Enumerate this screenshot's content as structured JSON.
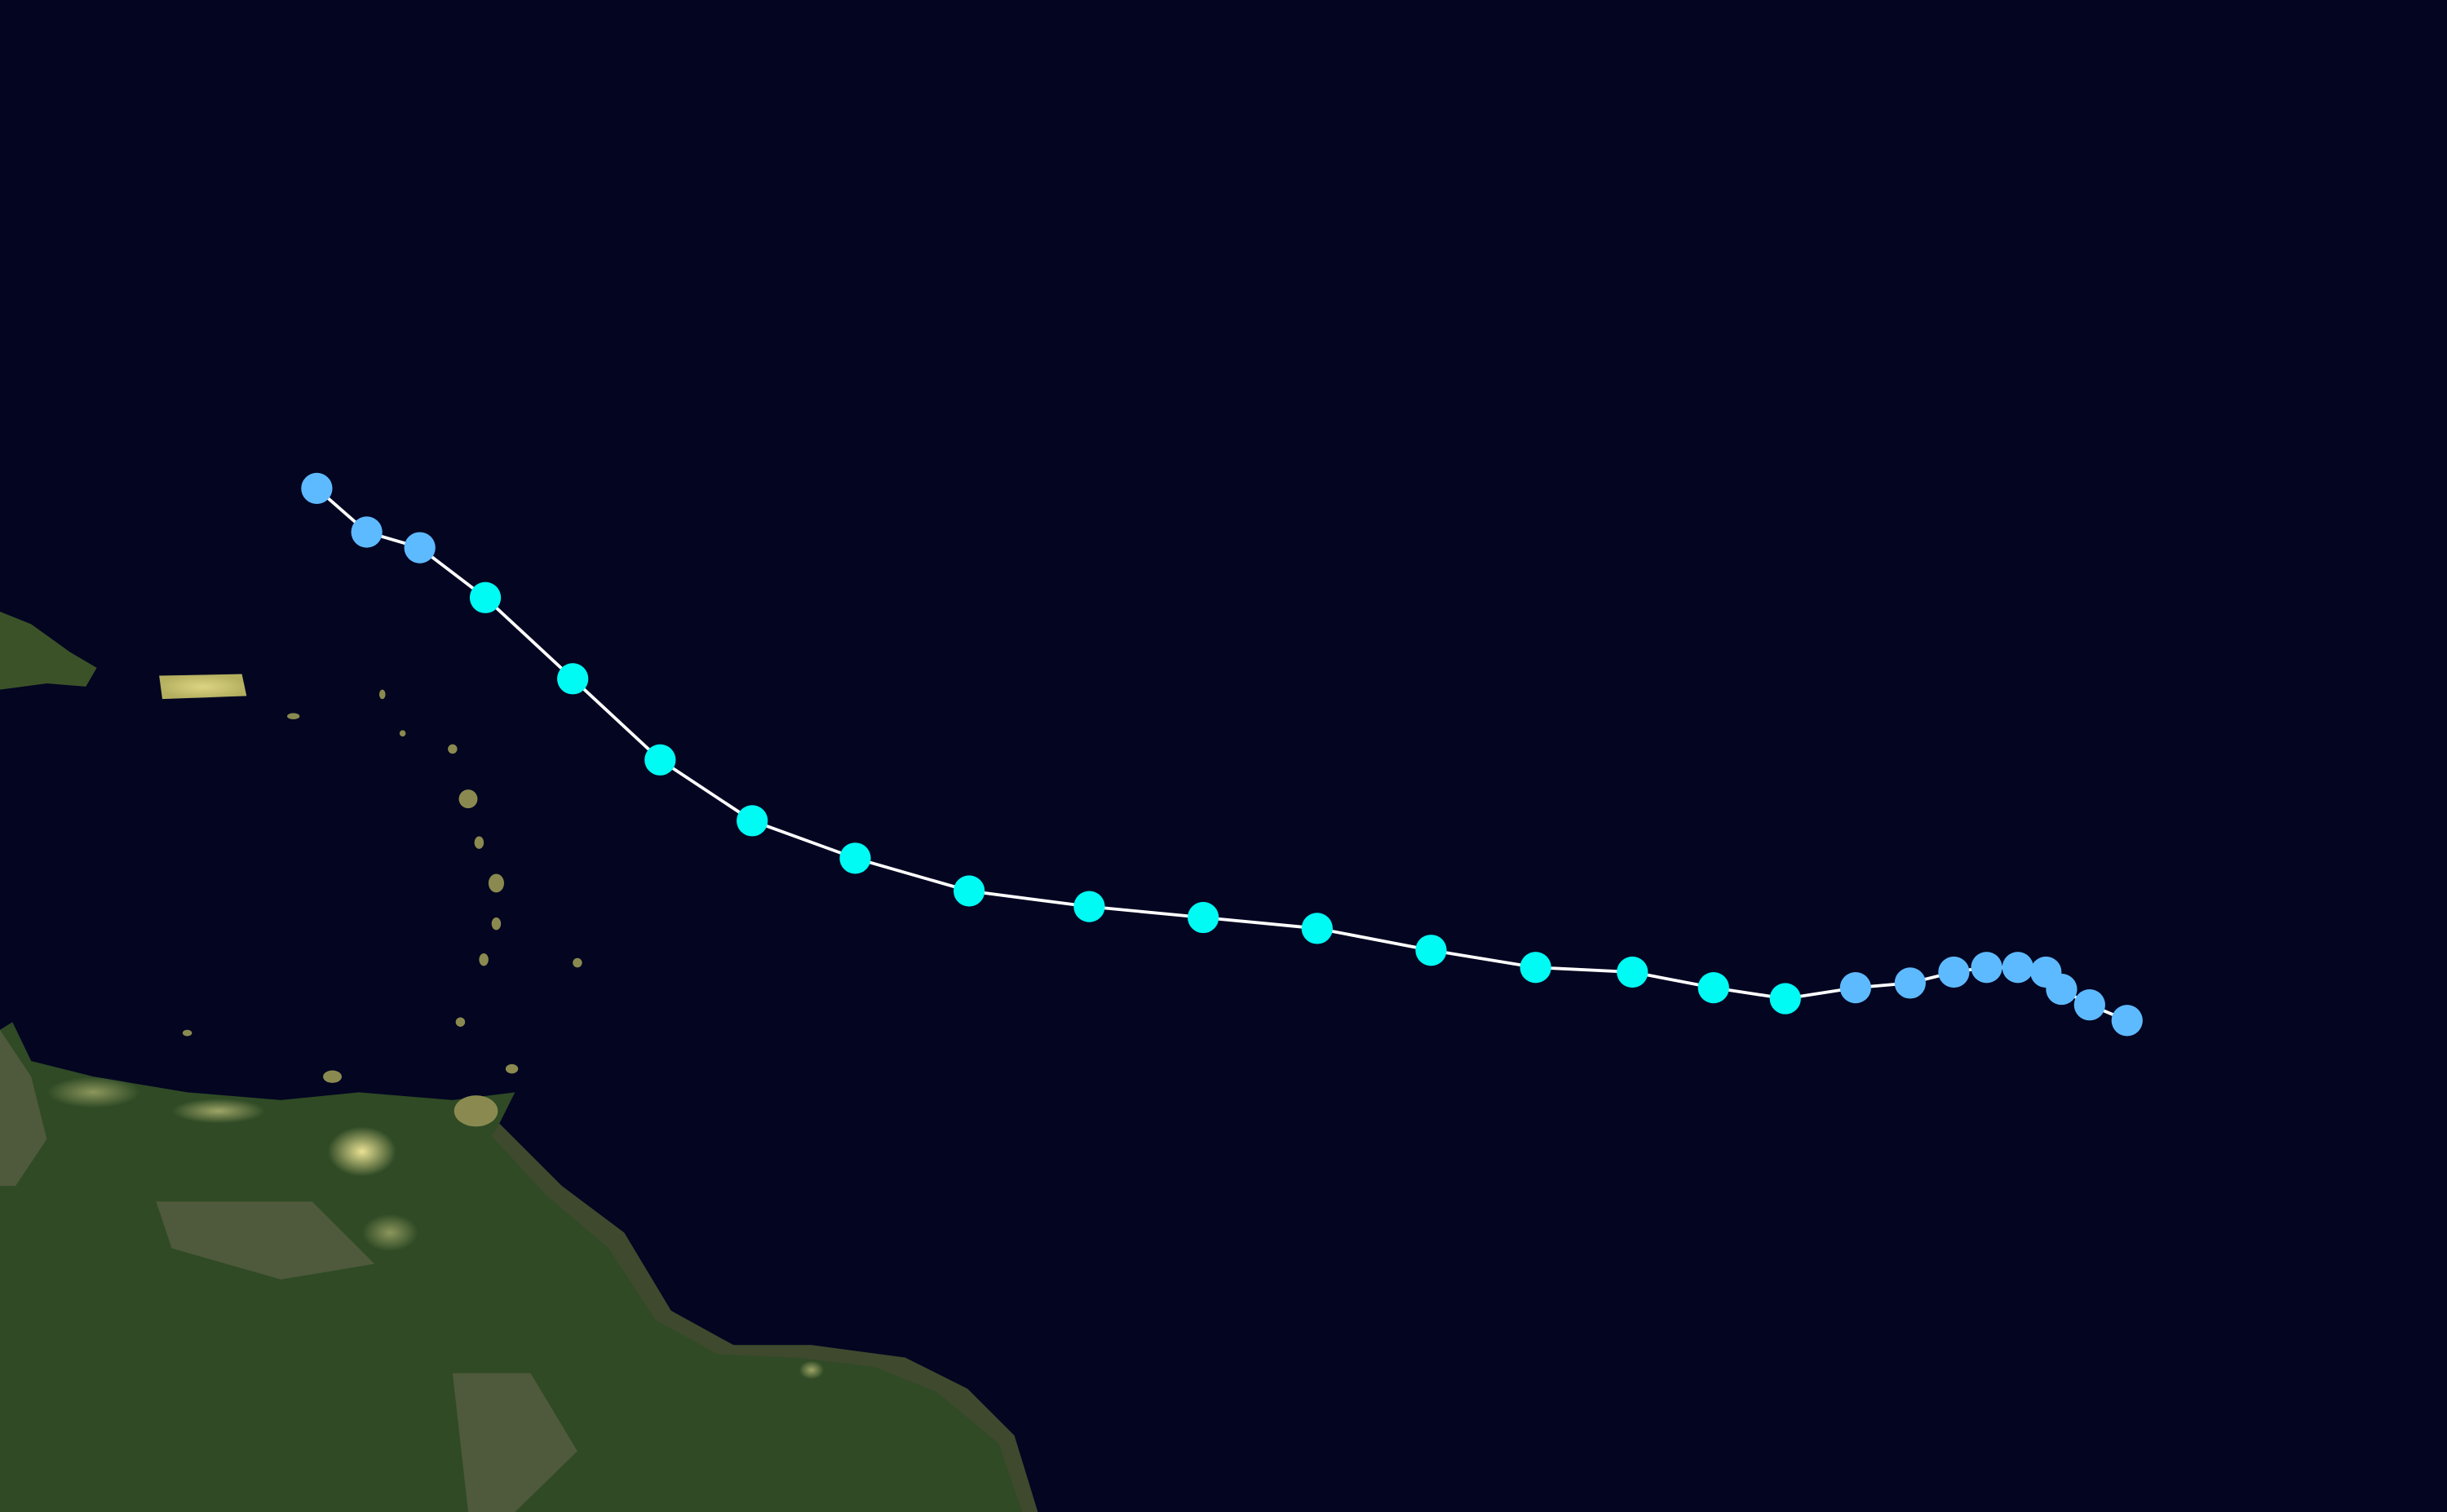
{
  "map": {
    "background_color": "#030521",
    "land_color": "#2f4a25",
    "city_light_color": "#f2e27a",
    "track_line_color": "#ffffff"
  },
  "legend_colors": {
    "tropical-depression": "#5ebaff",
    "tropical-storm": "#00faf4"
  },
  "track": {
    "points": [
      {
        "category": "tropical-depression"
      },
      {
        "category": "tropical-depression"
      },
      {
        "category": "tropical-depression"
      },
      {
        "category": "tropical-storm"
      },
      {
        "category": "tropical-storm"
      },
      {
        "category": "tropical-storm"
      },
      {
        "category": "tropical-storm"
      },
      {
        "category": "tropical-storm"
      },
      {
        "category": "tropical-storm"
      },
      {
        "category": "tropical-storm"
      },
      {
        "category": "tropical-storm"
      },
      {
        "category": "tropical-storm"
      },
      {
        "category": "tropical-storm"
      },
      {
        "category": "tropical-storm"
      },
      {
        "category": "tropical-storm"
      },
      {
        "category": "tropical-storm"
      },
      {
        "category": "tropical-storm"
      },
      {
        "category": "tropical-depression"
      },
      {
        "category": "tropical-depression"
      },
      {
        "category": "tropical-depression"
      },
      {
        "category": "tropical-depression"
      },
      {
        "category": "tropical-depression"
      },
      {
        "category": "tropical-depression"
      },
      {
        "category": "tropical-depression"
      },
      {
        "category": "tropical-depression"
      },
      {
        "category": "tropical-depression"
      }
    ]
  }
}
